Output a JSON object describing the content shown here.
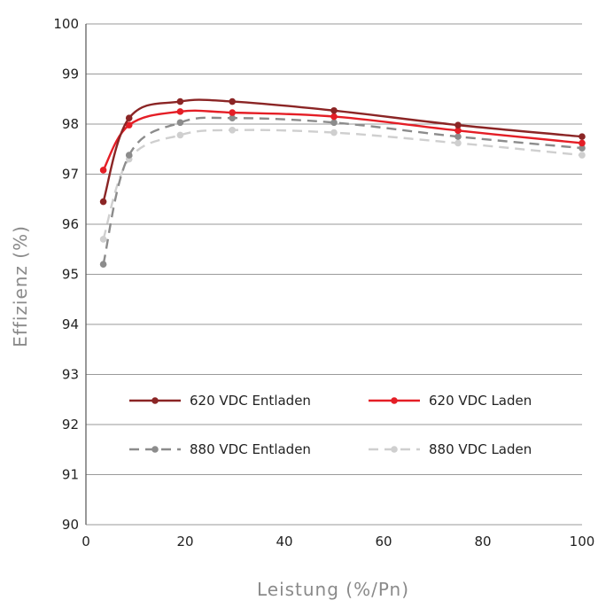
{
  "chart_data": {
    "type": "line",
    "title": "",
    "xlabel": "Leistung (%/Pn)",
    "ylabel": "Effizienz (%)",
    "xlim": [
      0,
      100
    ],
    "ylim": [
      90,
      100
    ],
    "xticks": [
      0,
      20,
      40,
      60,
      80,
      100
    ],
    "yticks": [
      90,
      91,
      92,
      93,
      94,
      95,
      96,
      97,
      98,
      99,
      100
    ],
    "grid": "horizontal",
    "legend_position": "lower-center, inside plot",
    "series": [
      {
        "name": "620 VDC Entladen",
        "color": "#8b2525",
        "dash": "solid",
        "x": [
          3.5,
          8.7,
          19,
          29.5,
          50,
          75,
          100
        ],
        "y": [
          96.45,
          98.12,
          98.45,
          98.45,
          98.27,
          97.98,
          97.75
        ]
      },
      {
        "name": "620 VDC Laden",
        "color": "#e41e26",
        "dash": "solid",
        "x": [
          3.5,
          8.7,
          19,
          29.5,
          50,
          75,
          100
        ],
        "y": [
          97.08,
          97.98,
          98.25,
          98.23,
          98.15,
          97.87,
          97.62
        ]
      },
      {
        "name": "880 VDC Entladen",
        "color": "#8c8c8c",
        "dash": "dashed",
        "x": [
          3.5,
          8.7,
          19,
          29.5,
          50,
          75,
          100
        ],
        "y": [
          95.2,
          97.38,
          98.03,
          98.12,
          98.03,
          97.75,
          97.52
        ]
      },
      {
        "name": "880 VDC Laden",
        "color": "#cfcfcf",
        "dash": "dashed",
        "x": [
          3.5,
          8.7,
          19,
          29.5,
          50,
          75,
          100
        ],
        "y": [
          95.7,
          97.3,
          97.78,
          97.88,
          97.83,
          97.62,
          97.38
        ]
      }
    ]
  }
}
